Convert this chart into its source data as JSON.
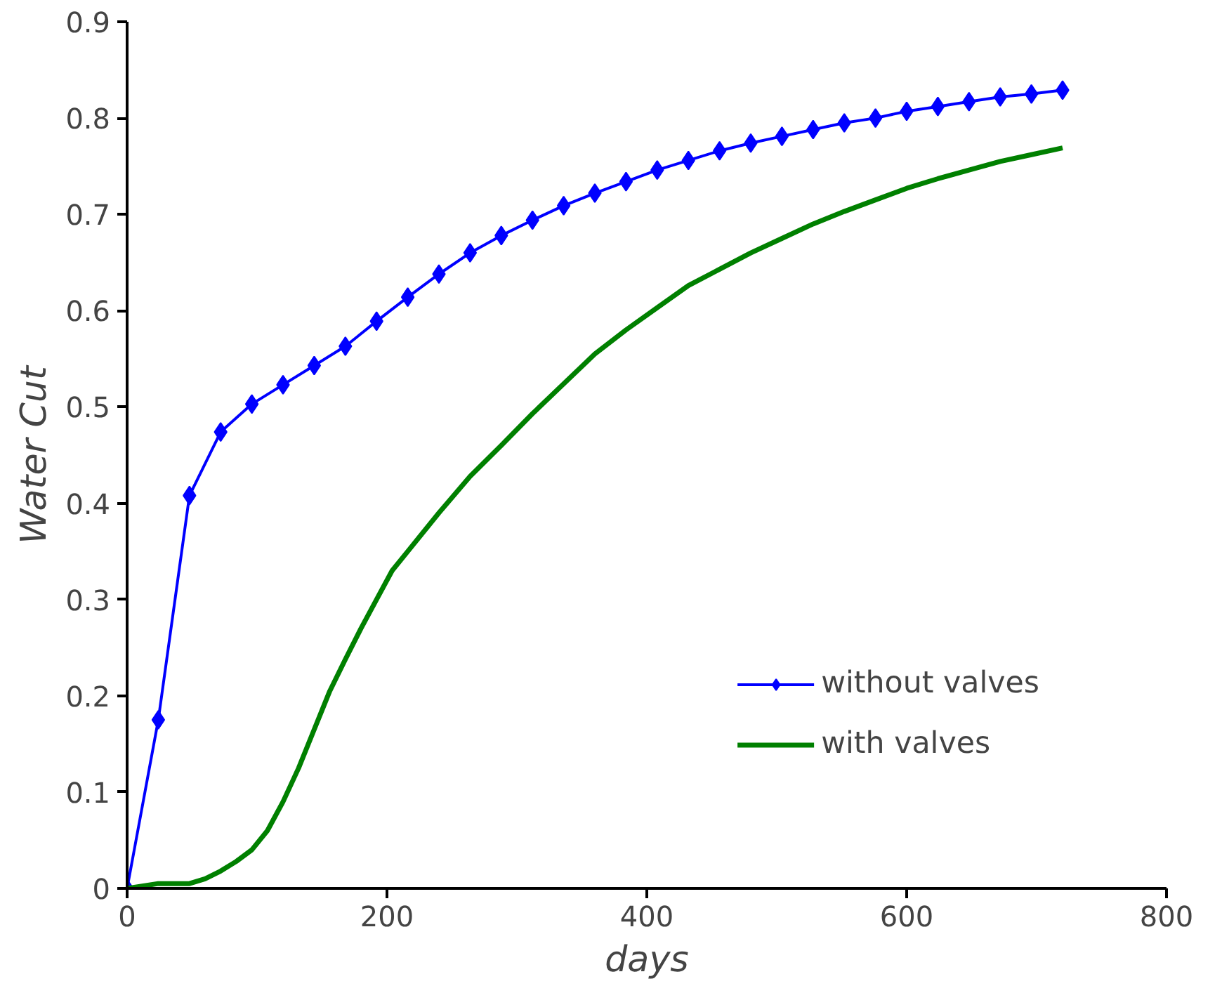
{
  "chart_data": {
    "type": "line",
    "xlabel": "days",
    "ylabel": "Water Cut",
    "xlim": [
      0,
      800
    ],
    "xticks": [
      0,
      200,
      400,
      600,
      800
    ],
    "ylim": [
      0,
      0.9
    ],
    "yticks": [
      0,
      0.1,
      0.2,
      0.3,
      0.4,
      0.5,
      0.6,
      0.7,
      0.8,
      0.9
    ],
    "grid": false,
    "legend": "bottom right",
    "series": [
      {
        "name": "without valves",
        "color": "#0000ff",
        "marker": "diamond",
        "line_style": "solid",
        "x": [
          0,
          24,
          48,
          72,
          96,
          120,
          144,
          168,
          192,
          216,
          240,
          264,
          288,
          312,
          336,
          360,
          384,
          408,
          432,
          456,
          480,
          504,
          528,
          552,
          576,
          600,
          624,
          648,
          672,
          696,
          720
        ],
        "values": [
          0,
          0.175,
          0.408,
          0.474,
          0.503,
          0.523,
          0.543,
          0.563,
          0.589,
          0.614,
          0.638,
          0.66,
          0.678,
          0.694,
          0.709,
          0.722,
          0.734,
          0.746,
          0.756,
          0.766,
          0.774,
          0.781,
          0.788,
          0.795,
          0.8,
          0.807,
          0.812,
          0.817,
          0.822,
          0.825,
          0.829
        ]
      },
      {
        "name": "with valves",
        "color": "#008000",
        "marker": "none",
        "line_style": "solid",
        "x": [
          0,
          24,
          48,
          60,
          72,
          84,
          96,
          108,
          120,
          132,
          144,
          156,
          168,
          180,
          192,
          204,
          216,
          240,
          264,
          288,
          312,
          336,
          360,
          384,
          408,
          432,
          456,
          480,
          504,
          528,
          552,
          576,
          600,
          624,
          648,
          672,
          696,
          720
        ],
        "values": [
          0,
          0.005,
          0.005,
          0.01,
          0.018,
          0.028,
          0.04,
          0.06,
          0.09,
          0.125,
          0.165,
          0.205,
          0.238,
          0.27,
          0.3,
          0.33,
          0.35,
          0.39,
          0.428,
          0.46,
          0.493,
          0.524,
          0.555,
          0.58,
          0.603,
          0.626,
          0.643,
          0.66,
          0.675,
          0.69,
          0.703,
          0.715,
          0.727,
          0.737,
          0.746,
          0.755,
          0.762,
          0.769
        ]
      }
    ]
  }
}
